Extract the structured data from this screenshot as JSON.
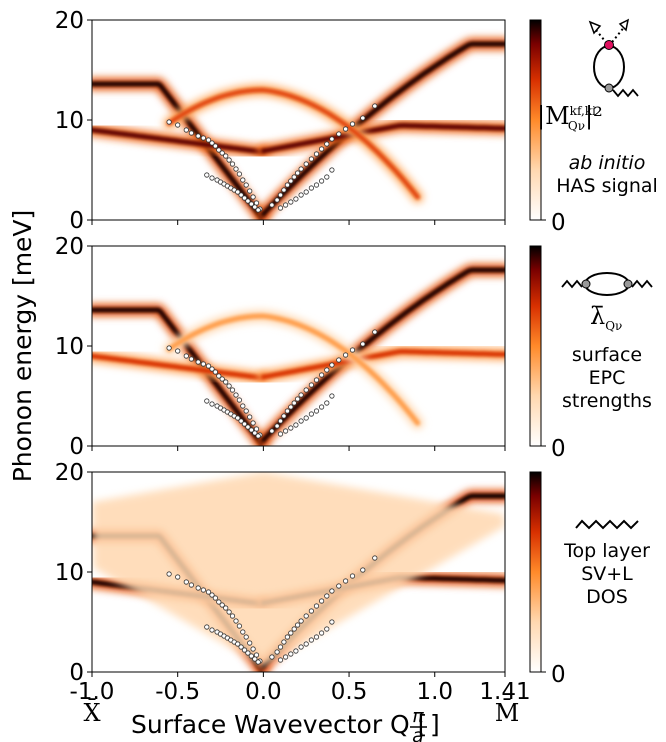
{
  "chart_data": {
    "type": "heatmap",
    "xlabel": "Surface Wavevector Q [",
    "xlabel_frac_num": "π",
    "xlabel_frac_den": "a",
    "xlabel_tail": "]",
    "ylabel": "Phonon energy [meV]",
    "xlim": [
      -1.0,
      1.41
    ],
    "ylim": [
      0,
      20
    ],
    "xticks": [
      "-1.0",
      "-0.5",
      "0.0",
      "0.5",
      "1.0",
      "1.41"
    ],
    "x_tick_values": [
      -1.0,
      -0.5,
      0.0,
      0.5,
      1.0,
      1.41
    ],
    "yticks": [
      "0",
      "10",
      "20"
    ],
    "y_tick_values": [
      0,
      10,
      20
    ],
    "high_symbol_left": "X̄",
    "high_symbol_right": "M̄",
    "colorscale": [
      "#ffffff",
      "#ffd8b0",
      "#ff8a2a",
      "#d83000",
      "#7a0000",
      "#000000"
    ],
    "colorbar_min_label": "0",
    "panels": [
      {
        "label_math": "|M",
        "label_math_sup": "kf,ki",
        "label_math_sub": "Qν",
        "label_math_tail": "|²",
        "label_lines": [
          "ab initio",
          "HAS signal"
        ],
        "label_italic_first": true,
        "branches": [
          {
            "name": "surface-rayleigh",
            "intensity": 0.95
          },
          {
            "name": "longitudinal-resonance",
            "intensity": 0.85
          },
          {
            "name": "upper-branch",
            "intensity": 0.55
          }
        ]
      },
      {
        "label_math": "λ̄",
        "label_math_sub": "Qν",
        "label_lines": [
          "surface",
          "EPC",
          "strengths"
        ],
        "label_italic_first": false,
        "branches": [
          {
            "name": "surface-rayleigh",
            "intensity": 0.95
          },
          {
            "name": "longitudinal-resonance",
            "intensity": 0.6
          },
          {
            "name": "upper-branch",
            "intensity": 0.35
          }
        ]
      },
      {
        "label_lines": [
          "Top layer",
          "SV+L",
          "DOS"
        ],
        "label_italic_first": false,
        "branches": [
          {
            "name": "surface-rayleigh",
            "intensity": 0.98
          },
          {
            "name": "longitudinal-resonance",
            "intensity": 0.95
          },
          {
            "name": "background-continuum",
            "intensity": 0.2
          }
        ]
      }
    ],
    "experimental_points": {
      "marker": "open-circle",
      "series": [
        {
          "name": "rayleigh-left",
          "x": [
            -0.55,
            -0.5,
            -0.45,
            -0.42,
            -0.38,
            -0.35,
            -0.32,
            -0.3,
            -0.28,
            -0.26,
            -0.24,
            -0.22,
            -0.2,
            -0.18,
            -0.16,
            -0.14,
            -0.12,
            -0.1,
            -0.08,
            -0.06,
            -0.04,
            -0.02
          ],
          "y": [
            9.8,
            9.5,
            9.0,
            8.7,
            8.4,
            8.2,
            8.0,
            7.7,
            7.4,
            7.0,
            6.7,
            6.4,
            6.0,
            5.6,
            5.1,
            4.6,
            4.0,
            3.5,
            2.9,
            2.3,
            1.7,
            1.1
          ]
        },
        {
          "name": "low-left",
          "x": [
            -0.33,
            -0.3,
            -0.27,
            -0.25,
            -0.23,
            -0.21,
            -0.19,
            -0.17,
            -0.15,
            -0.13,
            -0.11,
            -0.09,
            -0.07,
            -0.05,
            -0.03
          ],
          "y": [
            4.5,
            4.2,
            4.0,
            3.8,
            3.6,
            3.4,
            3.2,
            3.0,
            2.8,
            2.5,
            2.2,
            1.9,
            1.6,
            1.3,
            1.0
          ]
        },
        {
          "name": "rayleigh-right",
          "x": [
            0.05,
            0.08,
            0.1,
            0.12,
            0.14,
            0.16,
            0.18,
            0.2,
            0.22,
            0.25,
            0.28,
            0.31,
            0.34,
            0.37,
            0.4,
            0.44,
            0.48,
            0.52,
            0.58,
            0.65
          ],
          "y": [
            1.5,
            2.0,
            2.5,
            3.0,
            3.5,
            3.9,
            4.3,
            4.7,
            5.1,
            5.6,
            6.1,
            6.6,
            7.1,
            7.6,
            8.1,
            8.6,
            9.1,
            9.6,
            10.2,
            11.4
          ]
        },
        {
          "name": "low-right",
          "x": [
            0.1,
            0.13,
            0.16,
            0.19,
            0.22,
            0.25,
            0.28,
            0.31,
            0.34,
            0.37,
            0.4
          ],
          "y": [
            1.2,
            1.5,
            1.8,
            2.1,
            2.5,
            2.8,
            3.2,
            3.5,
            3.9,
            4.3,
            5.0
          ]
        }
      ]
    }
  }
}
